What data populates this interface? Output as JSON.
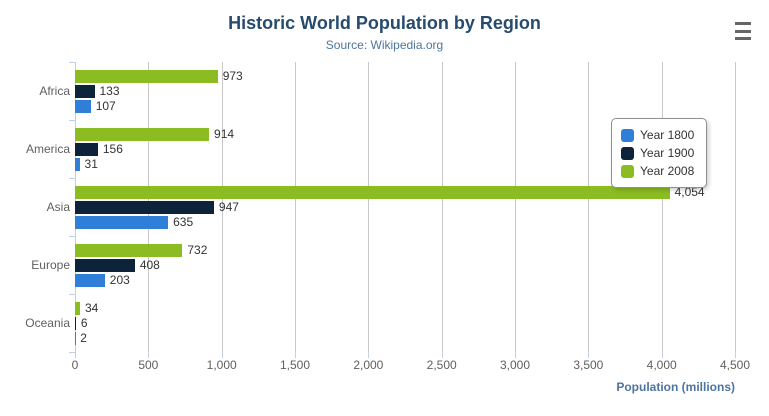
{
  "header": {
    "menu_icon": "hamburger-menu-icon"
  },
  "chart_data": {
    "type": "bar",
    "orientation": "horizontal",
    "title": "Historic World Population by Region",
    "subtitle": "Source: Wikipedia.org",
    "categories": [
      "Africa",
      "America",
      "Asia",
      "Europe",
      "Oceania"
    ],
    "series": [
      {
        "name": "Year 1800",
        "color": "#2f7ed8",
        "values": [
          107,
          31,
          635,
          203,
          2
        ]
      },
      {
        "name": "Year 1900",
        "color": "#0d233a",
        "values": [
          133,
          156,
          947,
          408,
          6
        ]
      },
      {
        "name": "Year 2008",
        "color": "#8bbc21",
        "values": [
          973,
          914,
          4054,
          732,
          34
        ]
      }
    ],
    "bar_group_order": "last_series_on_top",
    "xlabel": "Population (millions)",
    "xlim": [
      0,
      4500
    ],
    "xticks": [
      0,
      500,
      1000,
      1500,
      2000,
      2500,
      3000,
      3500,
      4000,
      4500
    ],
    "grid": true,
    "legend_position": "right",
    "data_labels": true
  },
  "colors": {
    "title": "#274b6d",
    "subtitle": "#4d759e",
    "axis_labels": "#606060",
    "data_labels": "#333333",
    "gridline": "#c8c8c8",
    "axis_line": "#c0d0e0",
    "axis_title": "#4d759e"
  }
}
